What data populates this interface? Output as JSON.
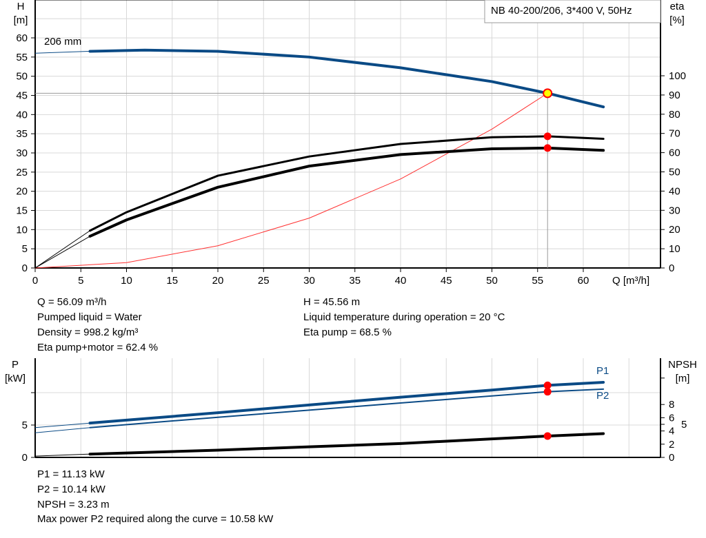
{
  "chart_data": [
    {
      "type": "line",
      "title": "NB 40-200/206, 3*400 V, 50Hz",
      "xlabel": "Q [m³/h]",
      "ylabel_left": "H\n[m]",
      "ylabel_left_lines": [
        "H",
        "[m]"
      ],
      "ylabel_right_lines": [
        "eta",
        "[%]"
      ],
      "xlim": [
        0,
        70
      ],
      "ylim_left": [
        0,
        70
      ],
      "ylim_right": [
        0,
        100
      ],
      "xticks": [
        0,
        5,
        10,
        15,
        20,
        25,
        30,
        35,
        40,
        45,
        50,
        55,
        60
      ],
      "yticks_left": [
        0,
        5,
        10,
        15,
        20,
        25,
        30,
        35,
        40,
        45,
        50,
        55,
        60
      ],
      "yticks_right": [
        0,
        10,
        20,
        30,
        40,
        50,
        60,
        70,
        80,
        90,
        100
      ],
      "grid": true,
      "curve_label": "206 mm",
      "series": [
        {
          "axis": "left",
          "color": "#0a4a85",
          "x": [
            0,
            6,
            12,
            20,
            30,
            40,
            50,
            56.09,
            62.2
          ],
          "y": [
            56,
            56.5,
            56.8,
            56.5,
            55,
            52.2,
            48.6,
            45.56,
            42
          ]
        },
        {
          "axis": "left",
          "color": "#ff3030",
          "x": [
            0,
            10,
            20,
            30,
            40,
            50,
            56.09
          ],
          "y": [
            0,
            1.4,
            5.8,
            13,
            23.2,
            36.2,
            45.56
          ]
        },
        {
          "axis": "right",
          "color": "#000000",
          "x": [
            0,
            6,
            10,
            20,
            30,
            40,
            50,
            56.09,
            62.2
          ],
          "y": [
            0,
            19.4,
            29,
            48,
            58,
            64.5,
            68,
            68.5,
            67.2
          ]
        },
        {
          "axis": "right",
          "color": "#000000",
          "x": [
            0,
            6,
            10,
            20,
            30,
            40,
            50,
            56.09,
            62.2
          ],
          "y": [
            0,
            16.5,
            25,
            42,
            53,
            59,
            62,
            62.4,
            61.2
          ]
        }
      ],
      "operating_point": {
        "Q": 56.09,
        "H": 45.56,
        "eta_pump": 68.5,
        "eta_total": 62.4
      }
    },
    {
      "type": "line",
      "ylabel_left_lines": [
        "P",
        "[kW]"
      ],
      "ylabel_right_lines": [
        "NPSH",
        "[m]"
      ],
      "xlim": [
        0,
        70
      ],
      "ylim_left": [
        0,
        15
      ],
      "ylim_right": [
        0,
        15
      ],
      "yticks_left": [
        0,
        5
      ],
      "yticks_right": [
        0,
        2,
        4,
        5,
        6,
        8
      ],
      "grid": true,
      "series": [
        {
          "name": "P1",
          "axis": "left",
          "color": "#0a4a85",
          "x": [
            0,
            6,
            20,
            30,
            40,
            50,
            56.09,
            62.2
          ],
          "y": [
            4.6,
            5.3,
            6.9,
            8.1,
            9.3,
            10.4,
            11.13,
            11.6
          ]
        },
        {
          "name": "P2",
          "axis": "left",
          "color": "#0a4a85",
          "x": [
            0,
            6,
            20,
            30,
            40,
            50,
            56.09,
            62.2
          ],
          "y": [
            3.8,
            4.6,
            6.2,
            7.3,
            8.4,
            9.5,
            10.14,
            10.55
          ]
        },
        {
          "axis": "right",
          "color": "#000000",
          "x": [
            0,
            6,
            20,
            30,
            40,
            50,
            56.09,
            62.2
          ],
          "y": [
            0.2,
            0.5,
            1.1,
            1.6,
            2.1,
            2.8,
            3.23,
            3.6
          ]
        }
      ],
      "operating_point": {
        "P1": 11.13,
        "P2": 10.14,
        "NPSH": 3.23
      }
    }
  ],
  "info_top": {
    "q": "Q = 56.09 m³/h",
    "liquid": "Pumped liquid = Water",
    "density": "Density = 998.2 kg/m³",
    "eta_total": "Eta pump+motor = 62.4 %",
    "h": "H = 45.56 m",
    "temp": "Liquid temperature during operation = 20 °C",
    "eta_pump": "Eta pump = 68.5 %"
  },
  "info_bottom": {
    "p1": "P1 = 11.13 kW",
    "p2": "P2 = 10.14 kW",
    "npsh": "NPSH = 3.23 m",
    "max_power": "Max power P2 required along the curve = 10.58 kW"
  }
}
